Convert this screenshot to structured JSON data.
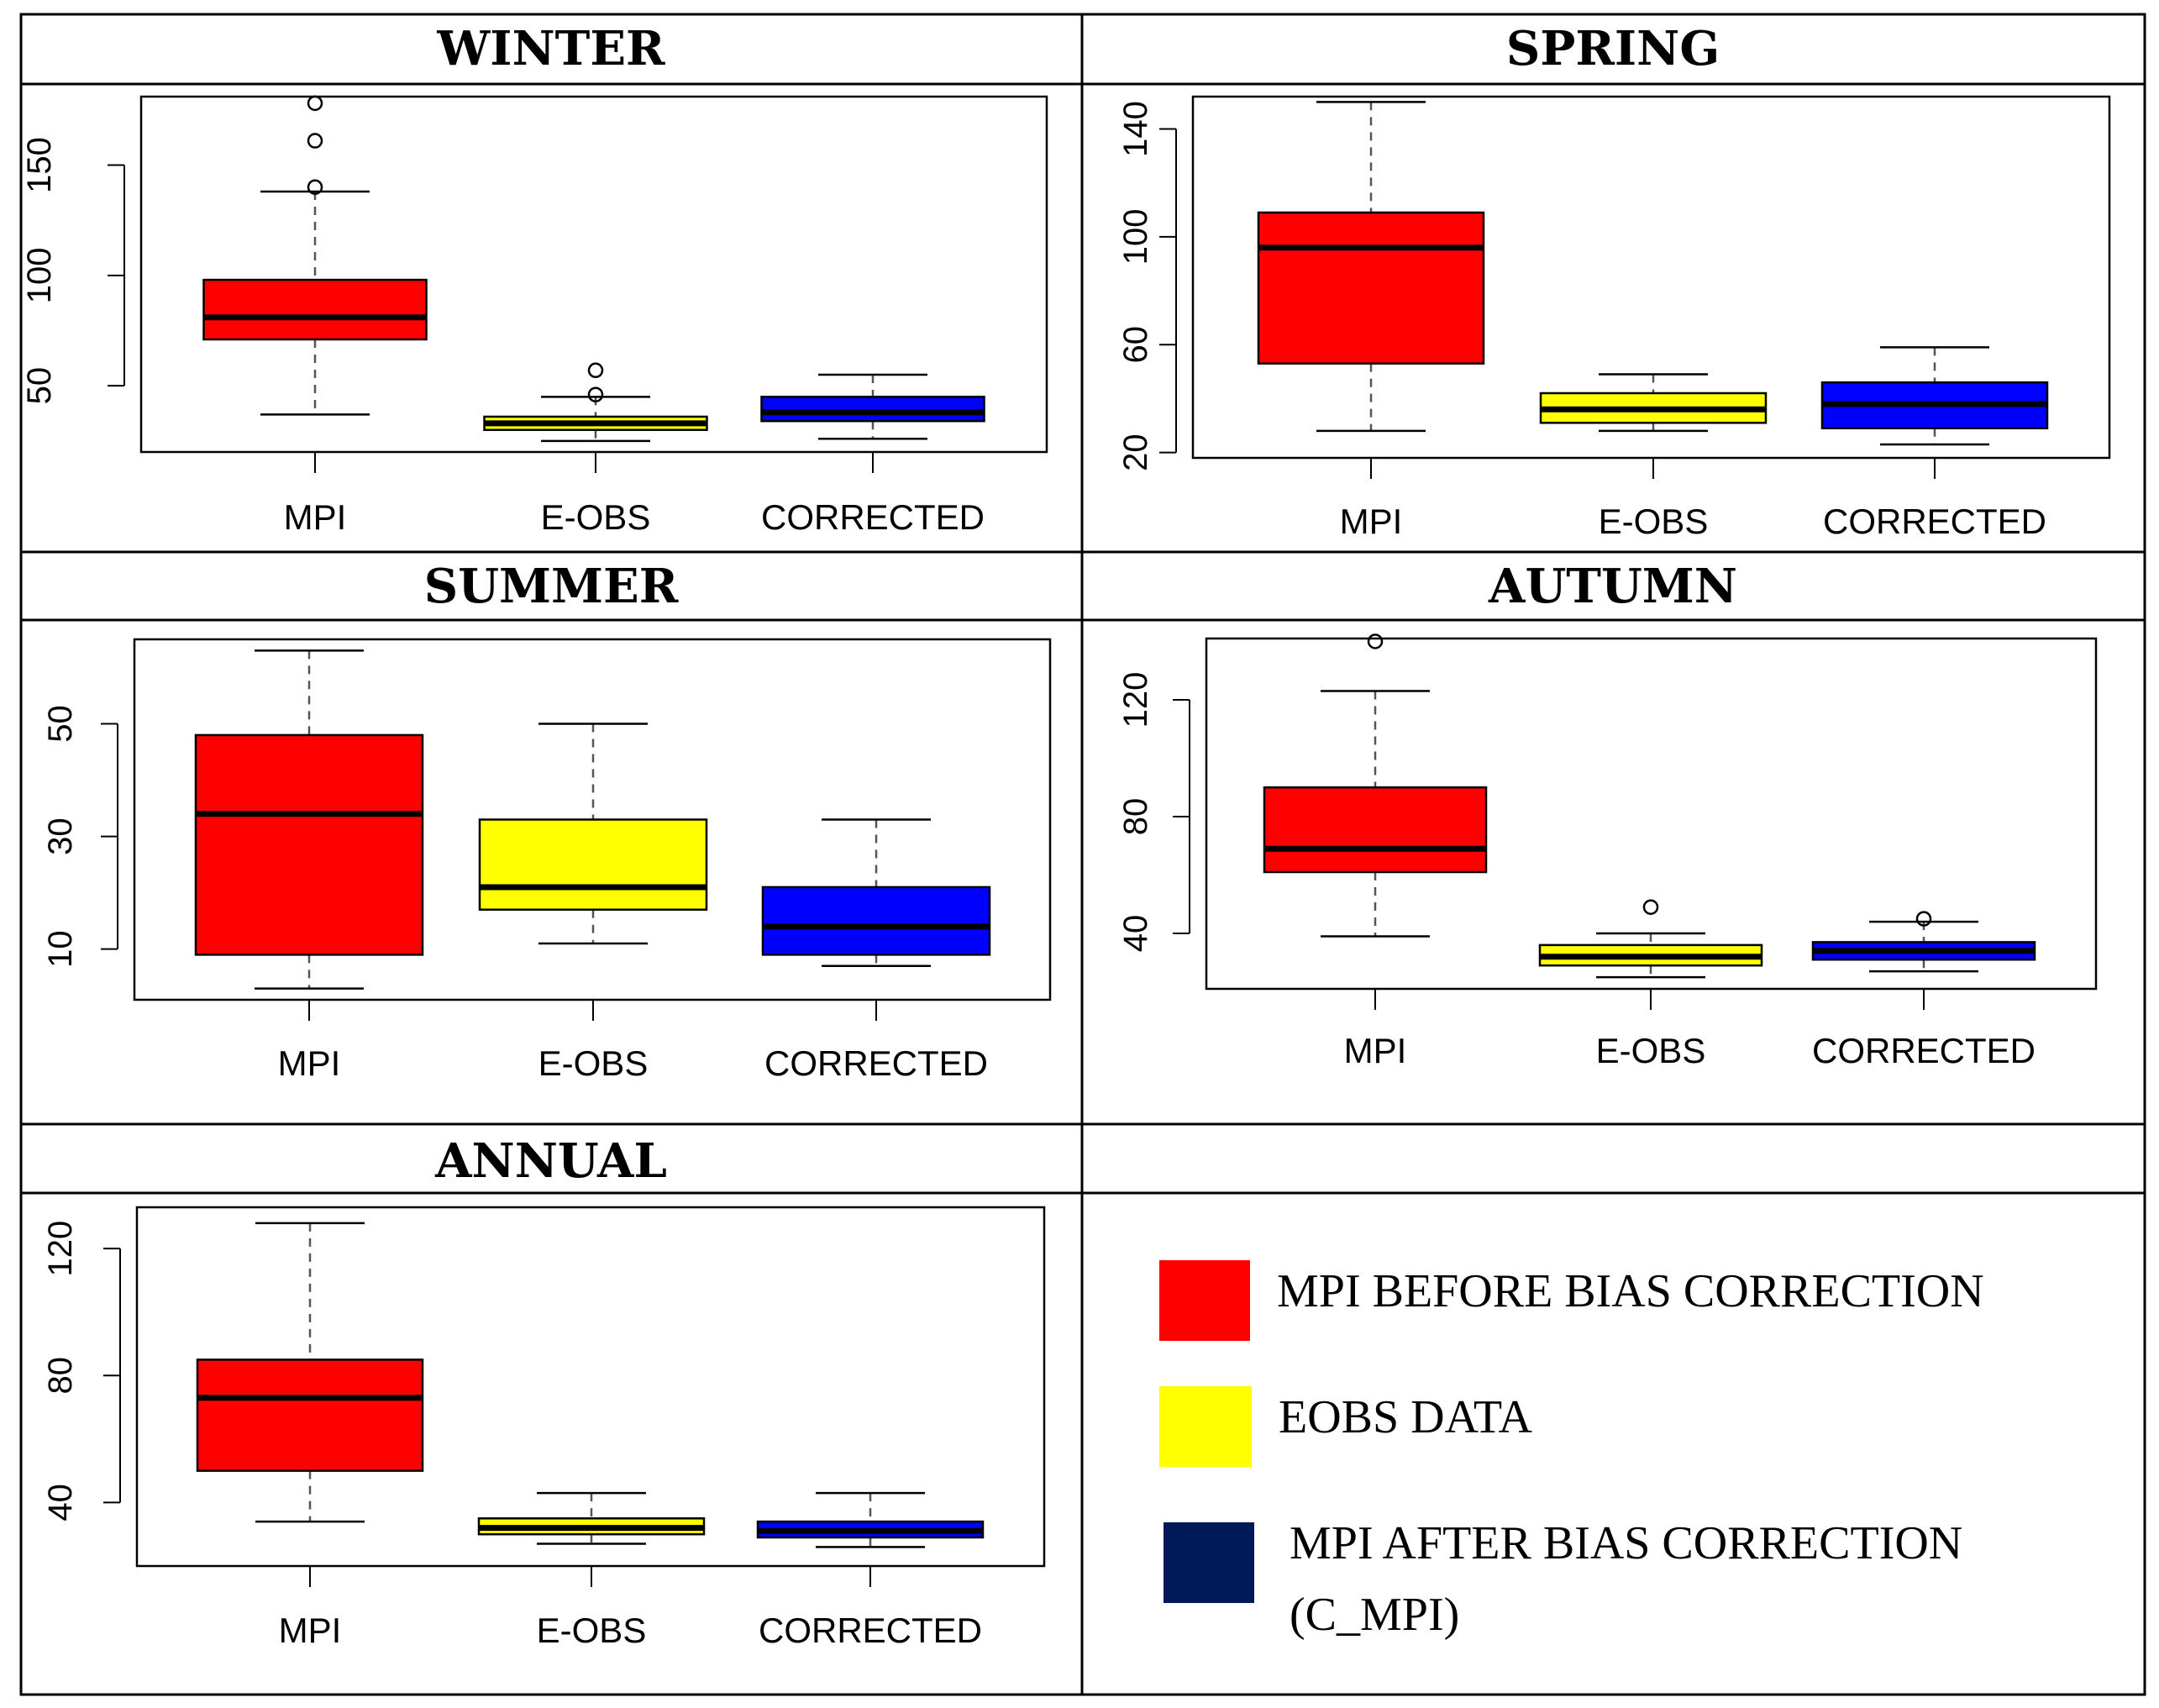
{
  "chart_data": [
    {
      "type": "box",
      "title": "WINTER",
      "categories": [
        "MPI",
        "E-OBS",
        "CORRECTED"
      ],
      "colors": [
        "#ff0000",
        "#ffff00",
        "#0000ff"
      ],
      "ylim": [
        20,
        181
      ],
      "yticks": [
        50,
        100,
        150
      ],
      "series": [
        {
          "min": 37,
          "q1": 71,
          "median": 81,
          "q3": 98,
          "max": 138,
          "outliers": [
            140,
            161,
            178
          ]
        },
        {
          "min": 25,
          "q1": 30,
          "median": 33,
          "q3": 36,
          "max": 45,
          "outliers": [
            46,
            57
          ]
        },
        {
          "min": 26,
          "q1": 34,
          "median": 38,
          "q3": 45,
          "max": 55,
          "outliers": []
        }
      ]
    },
    {
      "type": "box",
      "title": "SPRING",
      "categories": [
        "MPI",
        "E-OBS",
        "CORRECTED"
      ],
      "colors": [
        "#ff0000",
        "#ffff00",
        "#0000ff"
      ],
      "ylim": [
        18,
        152
      ],
      "yticks": [
        20,
        60,
        100,
        140
      ],
      "series": [
        {
          "min": 28,
          "q1": 53,
          "median": 96,
          "q3": 109,
          "max": 150,
          "outliers": []
        },
        {
          "min": 28,
          "q1": 31,
          "median": 36,
          "q3": 42,
          "max": 49,
          "outliers": []
        },
        {
          "min": 23,
          "q1": 29,
          "median": 38,
          "q3": 46,
          "max": 59,
          "outliers": []
        }
      ]
    },
    {
      "type": "box",
      "title": "SUMMER",
      "categories": [
        "MPI",
        "E-OBS",
        "CORRECTED"
      ],
      "colors": [
        "#ff0000",
        "#ffff00",
        "#0000ff"
      ],
      "ylim": [
        1,
        65
      ],
      "yticks": [
        10,
        30,
        50
      ],
      "series": [
        {
          "min": 3,
          "q1": 9,
          "median": 34,
          "q3": 48,
          "max": 63,
          "outliers": []
        },
        {
          "min": 11,
          "q1": 17,
          "median": 21,
          "q3": 33,
          "max": 50,
          "outliers": []
        },
        {
          "min": 7,
          "q1": 9,
          "median": 14,
          "q3": 21,
          "max": 33,
          "outliers": []
        }
      ]
    },
    {
      "type": "box",
      "title": "AUTUMN",
      "categories": [
        "MPI",
        "E-OBS",
        "CORRECTED"
      ],
      "colors": [
        "#ff0000",
        "#ffff00",
        "#0000ff"
      ],
      "ylim": [
        21,
        141
      ],
      "yticks": [
        40,
        80,
        120
      ],
      "series": [
        {
          "min": 39,
          "q1": 61,
          "median": 69,
          "q3": 90,
          "max": 123,
          "outliers": [
            140
          ]
        },
        {
          "min": 25,
          "q1": 29,
          "median": 32,
          "q3": 36,
          "max": 40,
          "outliers": [
            49
          ]
        },
        {
          "min": 27,
          "q1": 31,
          "median": 34,
          "q3": 37,
          "max": 44,
          "outliers": [
            45
          ]
        }
      ]
    },
    {
      "type": "box",
      "title": "ANNUAL",
      "categories": [
        "MPI",
        "E-OBS",
        "CORRECTED"
      ],
      "colors": [
        "#ff0000",
        "#ffff00",
        "#0000ff"
      ],
      "ylim": [
        20,
        133
      ],
      "yticks": [
        40,
        80,
        120
      ],
      "series": [
        {
          "min": 34,
          "q1": 50,
          "median": 73,
          "q3": 85,
          "max": 128,
          "outliers": []
        },
        {
          "min": 27,
          "q1": 30,
          "median": 32,
          "q3": 35,
          "max": 43,
          "outliers": []
        },
        {
          "min": 26,
          "q1": 29,
          "median": 31,
          "q3": 34,
          "max": 43,
          "outliers": []
        }
      ]
    }
  ],
  "legend": {
    "items": [
      {
        "label": "MPI BEFORE BIAS CORRECTION",
        "color": "#ff0000"
      },
      {
        "label": "EOBS DATA",
        "color": "#ffff00"
      },
      {
        "label": "MPI AFTER BIAS CORRECTION",
        "label2": "(C_MPI)",
        "color": "#001a57"
      }
    ]
  }
}
